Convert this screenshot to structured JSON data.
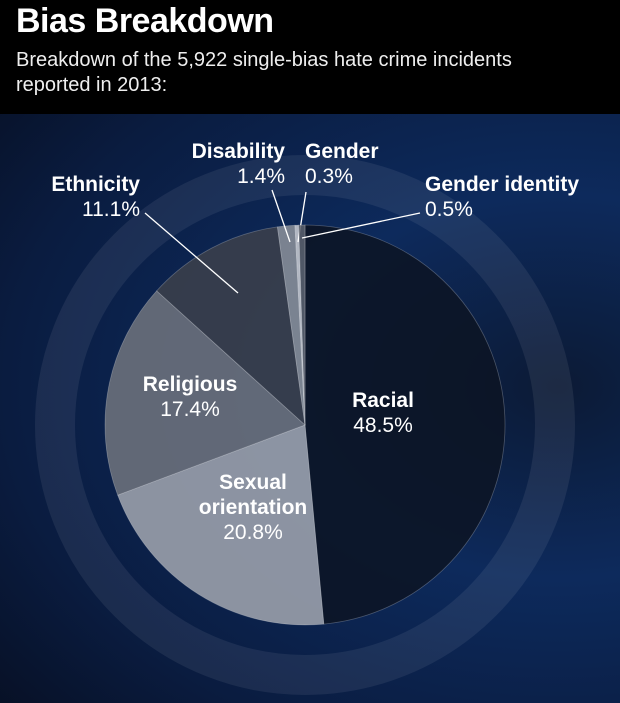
{
  "chart_data": {
    "type": "pie",
    "title": "Bias Breakdown",
    "subtitle": "Breakdown of the 5,922 single-bias hate crime incidents reported in 2013:",
    "categories": [
      "Racial",
      "Sexual orientation",
      "Religious",
      "Ethnicity",
      "Disability",
      "Gender",
      "Gender identity"
    ],
    "values": [
      48.5,
      20.8,
      17.4,
      11.1,
      1.4,
      0.3,
      0.5
    ],
    "value_labels": [
      "48.5%",
      "20.8%",
      "17.4%",
      "11.1%",
      "1.4%",
      "0.3%",
      "0.5%"
    ],
    "colors": [
      "#0d1424",
      "#9ea3ad",
      "#6d727c",
      "#3b404b",
      "#8a8f99",
      "#c9ccd2",
      "#5a5f69"
    ]
  }
}
